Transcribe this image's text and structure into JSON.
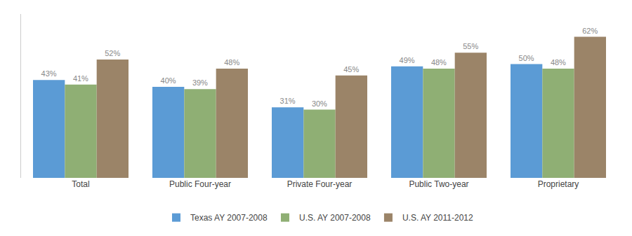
{
  "chart_data": {
    "type": "bar",
    "categories": [
      "Total",
      "Public Four-year",
      "Private Four-year",
      "Public Two-year",
      "Proprietary"
    ],
    "series": [
      {
        "name": "Texas AY 2007-2008",
        "color": "#5B9BD5",
        "values": [
          43,
          40,
          31,
          49,
          50
        ],
        "value_labels": [
          "43%",
          "40%",
          "31%",
          "49%",
          "50%"
        ]
      },
      {
        "name": "U.S. AY 2007-2008",
        "color": "#8FAF74",
        "values": [
          41,
          39,
          30,
          48,
          48
        ],
        "value_labels": [
          "41%",
          "39%",
          "30%",
          "48%",
          "48%"
        ]
      },
      {
        "name": "U.S. AY 2011-2012",
        "color": "#9B8468",
        "values": [
          52,
          48,
          45,
          55,
          62
        ],
        "value_labels": [
          "52%",
          "48%",
          "45%",
          "55%",
          "62%"
        ]
      }
    ],
    "ylim": [
      0,
      72
    ],
    "yticks": [],
    "grid": false,
    "legend": "bottom",
    "data_labels": true,
    "tick_labels": "x"
  }
}
